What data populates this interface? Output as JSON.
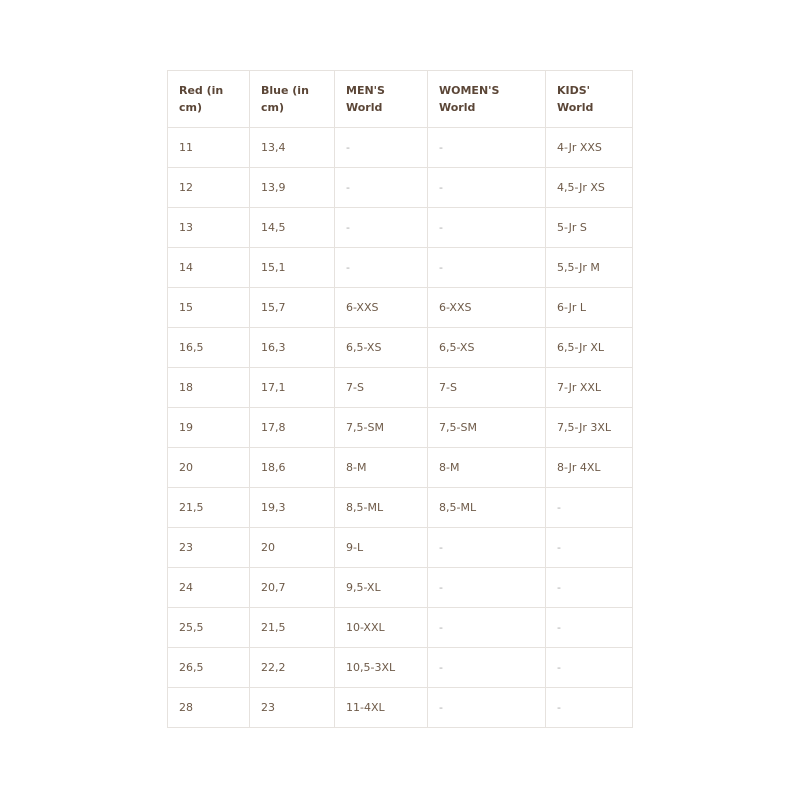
{
  "headers": [
    "Red (in cm)",
    "Blue (in cm)",
    "MEN'S World",
    "WOMEN'S World",
    "KIDS' World"
  ],
  "rows": [
    [
      "11",
      "13,4",
      "-",
      "-",
      "4-Jr XXS"
    ],
    [
      "12",
      "13,9",
      "-",
      "-",
      "4,5-Jr XS"
    ],
    [
      "13",
      "14,5",
      "-",
      "-",
      "5-Jr S"
    ],
    [
      "14",
      "15,1",
      "-",
      "-",
      "5,5-Jr M"
    ],
    [
      "15",
      "15,7",
      "6-XXS",
      "6-XXS",
      "6-Jr L"
    ],
    [
      "16,5",
      "16,3",
      "6,5-XS",
      "6,5-XS",
      "6,5-Jr XL"
    ],
    [
      "18",
      "17,1",
      "7-S",
      "7-S",
      "7-Jr XXL"
    ],
    [
      "19",
      "17,8",
      "7,5-SM",
      "7,5-SM",
      "7,5-Jr 3XL"
    ],
    [
      "20",
      "18,6",
      "8-M",
      "8-M",
      "8-Jr 4XL"
    ],
    [
      "21,5",
      "19,3",
      "8,5-ML",
      "8,5-ML",
      "-"
    ],
    [
      "23",
      "20",
      "9-L",
      "-",
      "-"
    ],
    [
      "24",
      "20,7",
      "9,5-XL",
      "-",
      "-"
    ],
    [
      "25,5",
      "21,5",
      "10-XXL",
      "-",
      "-"
    ],
    [
      "26,5",
      "22,2",
      "10,5-3XL",
      "-",
      "-"
    ],
    [
      "28",
      "23",
      "11-4XL",
      "-",
      "-"
    ]
  ]
}
